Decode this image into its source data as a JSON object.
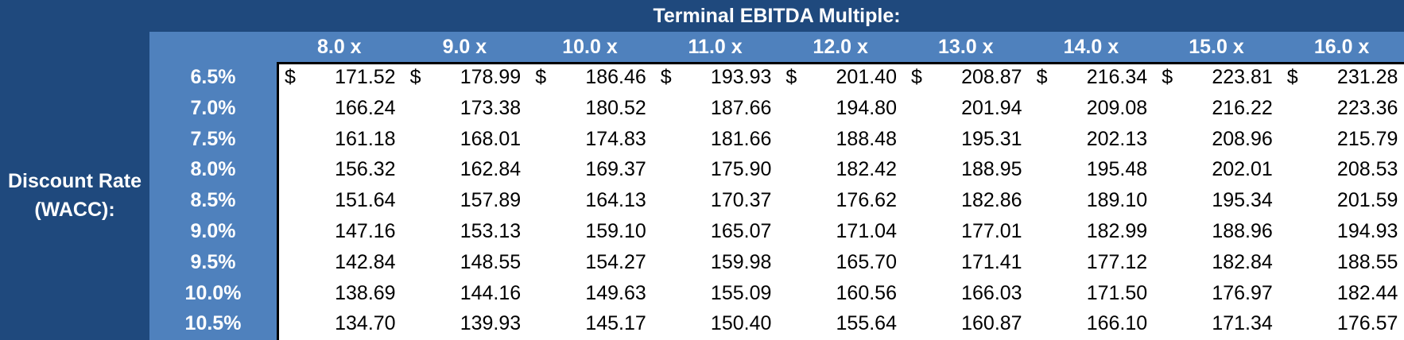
{
  "title": "Terminal EBITDA Multiple:",
  "row_title_line1": "Discount Rate",
  "row_title_line2": "(WACC):",
  "currency_symbol": "$",
  "columns": [
    "8.0 x",
    "9.0 x",
    "10.0 x",
    "11.0 x",
    "12.0 x",
    "13.0 x",
    "14.0 x",
    "15.0 x",
    "16.0 x"
  ],
  "rows": [
    {
      "rate": "6.5%",
      "values": [
        "171.52",
        "178.99",
        "186.46",
        "193.93",
        "201.40",
        "208.87",
        "216.34",
        "223.81",
        "231.28"
      ]
    },
    {
      "rate": "7.0%",
      "values": [
        "166.24",
        "173.38",
        "180.52",
        "187.66",
        "194.80",
        "201.94",
        "209.08",
        "216.22",
        "223.36"
      ]
    },
    {
      "rate": "7.5%",
      "values": [
        "161.18",
        "168.01",
        "174.83",
        "181.66",
        "188.48",
        "195.31",
        "202.13",
        "208.96",
        "215.79"
      ]
    },
    {
      "rate": "8.0%",
      "values": [
        "156.32",
        "162.84",
        "169.37",
        "175.90",
        "182.42",
        "188.95",
        "195.48",
        "202.01",
        "208.53"
      ]
    },
    {
      "rate": "8.5%",
      "values": [
        "151.64",
        "157.89",
        "164.13",
        "170.37",
        "176.62",
        "182.86",
        "189.10",
        "195.34",
        "201.59"
      ]
    },
    {
      "rate": "9.0%",
      "values": [
        "147.16",
        "153.13",
        "159.10",
        "165.07",
        "171.04",
        "177.01",
        "182.99",
        "188.96",
        "194.93"
      ]
    },
    {
      "rate": "9.5%",
      "values": [
        "142.84",
        "148.55",
        "154.27",
        "159.98",
        "165.70",
        "171.41",
        "177.12",
        "182.84",
        "188.55"
      ]
    },
    {
      "rate": "10.0%",
      "values": [
        "138.69",
        "144.16",
        "149.63",
        "155.09",
        "160.56",
        "166.03",
        "171.50",
        "176.97",
        "182.44"
      ]
    },
    {
      "rate": "10.5%",
      "values": [
        "134.70",
        "139.93",
        "145.17",
        "150.40",
        "155.64",
        "160.87",
        "166.10",
        "171.34",
        "176.57"
      ]
    }
  ]
}
